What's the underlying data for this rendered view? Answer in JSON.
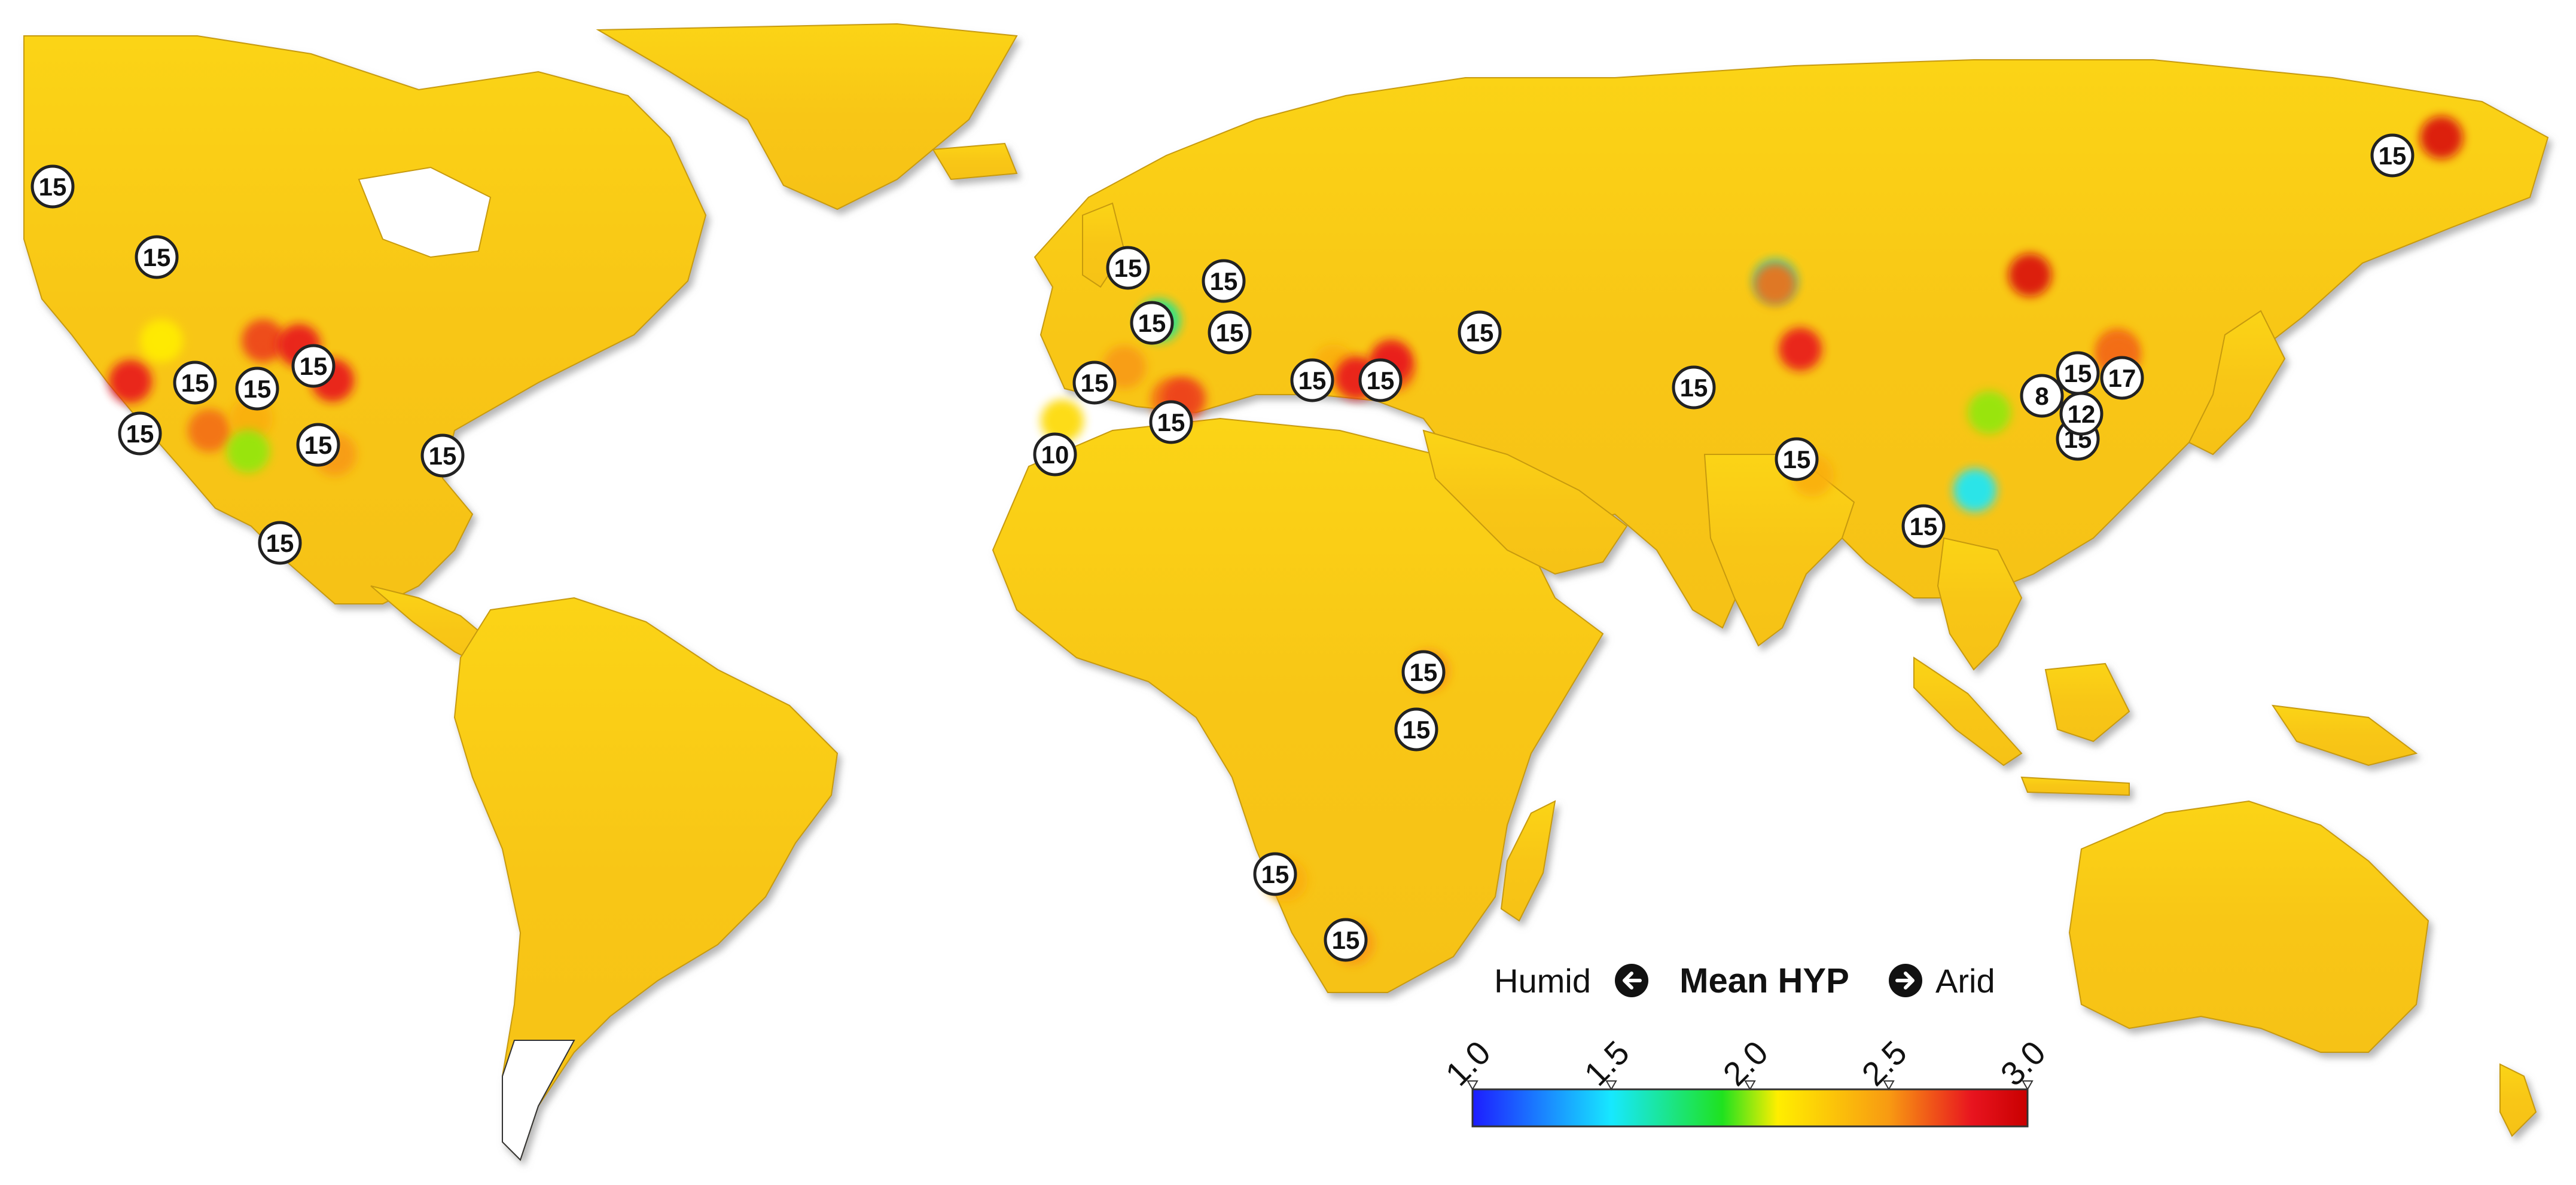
{
  "palette": {
    "humid": "#1d1dff",
    "semi_humid": "#17e8ff",
    "moderate": "#1fe21f",
    "dry": "#ffee00",
    "arid_orange": "#f89a12",
    "arid_red": "#e8141f",
    "very_arid": "#c90000",
    "land_base": "#f7ca14",
    "ocean": "#ffffff"
  },
  "legend": {
    "left_label": "Humid",
    "title": "Mean HYP",
    "right_label": "Arid",
    "ticks": [
      "1.0",
      "1.5",
      "2.0",
      "2.5",
      "3.0"
    ],
    "min": 1.0,
    "max": 3.0
  },
  "site_markers": [
    {
      "label": "15"
    },
    {
      "label": "15"
    },
    {
      "label": "15"
    },
    {
      "label": "15"
    },
    {
      "label": "15"
    },
    {
      "label": "15"
    },
    {
      "label": "15"
    },
    {
      "label": "15"
    },
    {
      "label": "15"
    },
    {
      "label": "15"
    },
    {
      "label": "15"
    },
    {
      "label": "15"
    },
    {
      "label": "15"
    },
    {
      "label": "15"
    },
    {
      "label": "15"
    },
    {
      "label": "15"
    },
    {
      "label": "15"
    },
    {
      "label": "15"
    },
    {
      "label": "10"
    },
    {
      "label": "15"
    },
    {
      "label": "15"
    },
    {
      "label": "15"
    },
    {
      "label": "15"
    },
    {
      "label": "8"
    },
    {
      "label": "15"
    },
    {
      "label": "17"
    },
    {
      "label": "12"
    },
    {
      "label": "15"
    },
    {
      "label": "15"
    },
    {
      "label": "15"
    },
    {
      "label": "15"
    },
    {
      "label": "15"
    }
  ],
  "hotspots": [
    {
      "hyp": 2.8
    },
    {
      "hyp": 2.7
    },
    {
      "hyp": 2.8
    },
    {
      "hyp": 2.8
    },
    {
      "hyp": 2.6
    },
    {
      "hyp": 2.4
    },
    {
      "hyp": 2.5
    },
    {
      "hyp": 2.1
    },
    {
      "hyp": 2.0
    },
    {
      "hyp": 2.5
    },
    {
      "hyp": 2.2
    },
    {
      "hyp": 2.6
    },
    {
      "hyp": 2.7
    },
    {
      "hyp": 1.7
    },
    {
      "hyp": 2.4
    },
    {
      "hyp": 2.8
    },
    {
      "hyp": 2.6
    },
    {
      "hyp": 2.8
    },
    {
      "hyp": 2.9
    },
    {
      "hyp": 1.6
    },
    {
      "hyp": 2.8
    },
    {
      "hyp": 2.4
    },
    {
      "hyp": 2.6
    },
    {
      "hyp": 1.5
    },
    {
      "hyp": 2.0
    },
    {
      "hyp": 2.6
    },
    {
      "hyp": 2.9
    },
    {
      "hyp": 2.6
    },
    {
      "hyp": 2.5
    },
    {
      "hyp": 2.4
    },
    {
      "hyp": 2.5
    }
  ]
}
